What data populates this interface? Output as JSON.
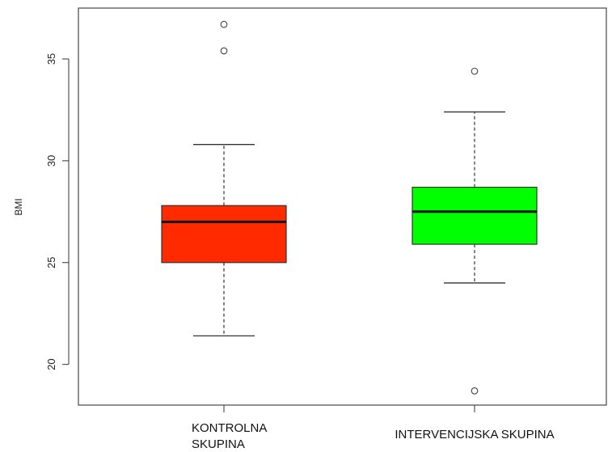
{
  "chart_data": {
    "type": "boxplot",
    "title": "",
    "xlabel": "",
    "ylabel": "BMI",
    "ylim": [
      18,
      37.5
    ],
    "yticks": [
      20,
      25,
      30,
      35
    ],
    "grid": false,
    "categories": [
      {
        "lines": [
          "KONTROLNA",
          "SKUPINA"
        ]
      },
      {
        "lines": [
          "INTERVENCIJSKA SKUPINA"
        ]
      }
    ],
    "boxes": [
      {
        "color": "#ff2a00",
        "whisker_low": 21.4,
        "q1": 25.0,
        "median": 27.0,
        "q3": 27.8,
        "whisker_high": 30.8,
        "outliers": [
          35.4,
          36.7
        ]
      },
      {
        "color": "#00ff00",
        "whisker_low": 24.0,
        "q1": 25.9,
        "median": 27.5,
        "q3": 28.7,
        "whisker_high": 32.4,
        "outliers": [
          34.4,
          18.7
        ]
      }
    ]
  }
}
